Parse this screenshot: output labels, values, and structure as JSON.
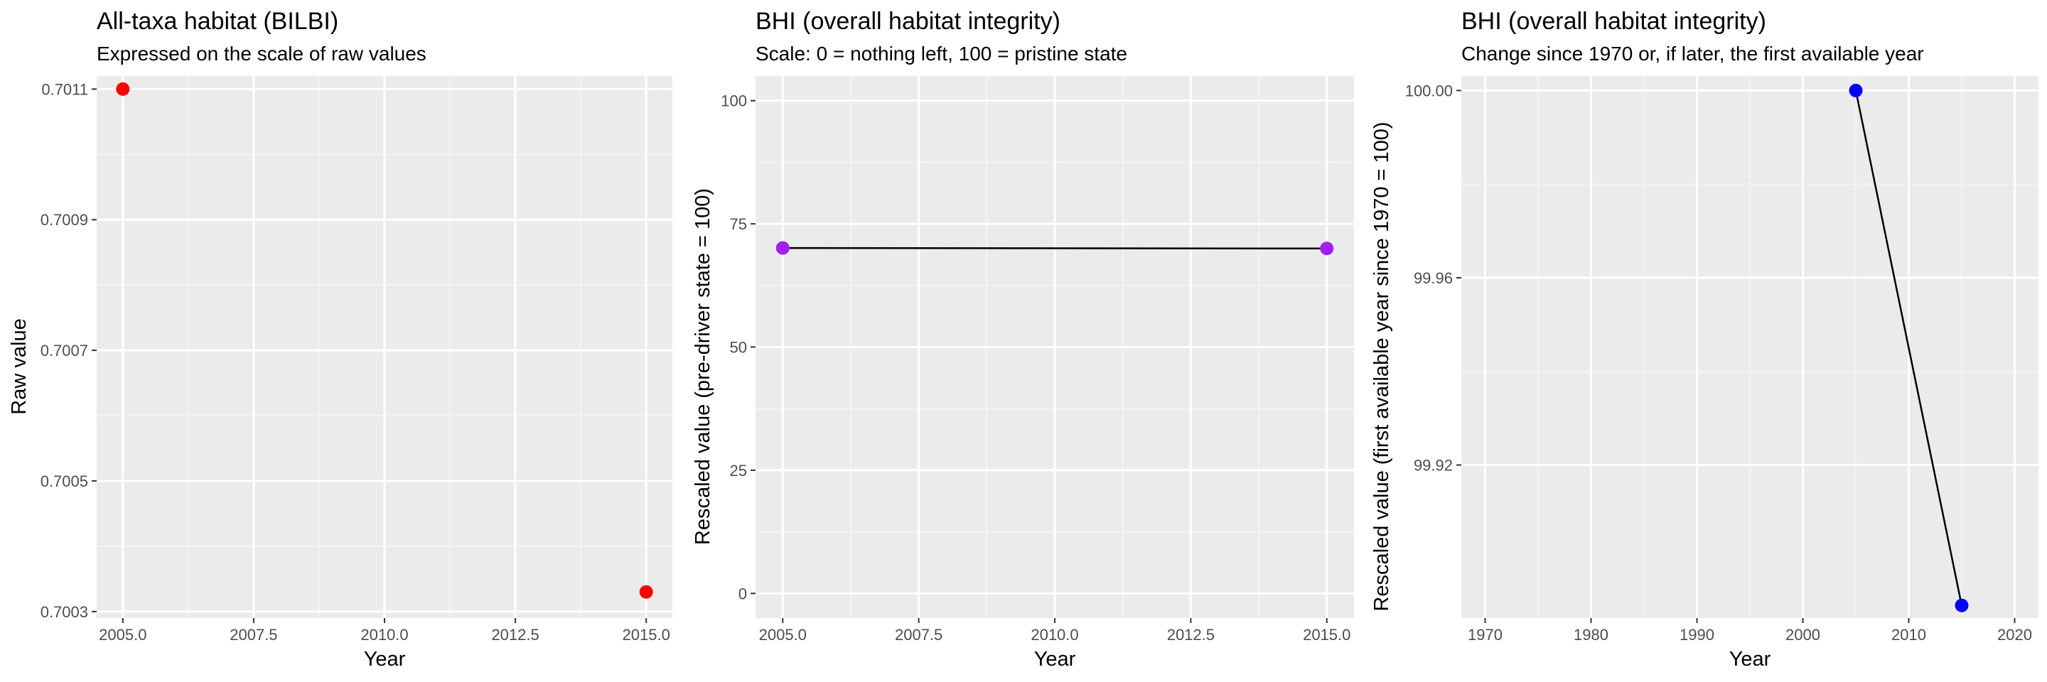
{
  "colors": {
    "panel_bg": "#ebebeb",
    "grid_major": "#ffffff",
    "grid_minor": "#f5f5f5",
    "line": "#000000",
    "tick": "#333333"
  },
  "chart_data": [
    {
      "type": "scatter",
      "title": "All-taxa habitat (BILBI)",
      "subtitle": "Expressed on the scale of raw values",
      "xlabel": "Year",
      "ylabel": "Raw value",
      "xlim": [
        2004.5,
        2015.5
      ],
      "ylim": [
        0.70029,
        0.70112
      ],
      "xticks": [
        2005.0,
        2007.5,
        2010.0,
        2012.5,
        2015.0
      ],
      "xtick_labels": [
        "2005.0",
        "2007.5",
        "2010.0",
        "2012.5",
        "2015.0"
      ],
      "yticks": [
        0.7003,
        0.7005,
        0.7007,
        0.7009,
        0.7011
      ],
      "ytick_labels": [
        "0.7003",
        "0.7005",
        "0.7007",
        "0.7009",
        "0.7011"
      ],
      "connect_points": false,
      "grid": true,
      "series": [
        {
          "color": "#ff0000",
          "x": [
            2005,
            2015
          ],
          "y": [
            0.7011,
            0.70033
          ]
        }
      ]
    },
    {
      "type": "line",
      "title": "BHI (overall habitat integrity)",
      "subtitle": "Scale: 0 = nothing left, 100 = pristine state",
      "xlabel": "Year",
      "ylabel": "Rescaled value (pre-driver state = 100)",
      "xlim": [
        2004.5,
        2015.5
      ],
      "ylim": [
        -5,
        105
      ],
      "xticks": [
        2005.0,
        2007.5,
        2010.0,
        2012.5,
        2015.0
      ],
      "xtick_labels": [
        "2005.0",
        "2007.5",
        "2010.0",
        "2012.5",
        "2015.0"
      ],
      "yticks": [
        0,
        25,
        50,
        75,
        100
      ],
      "ytick_labels": [
        "0",
        "25",
        "50",
        "75",
        "100"
      ],
      "connect_points": true,
      "grid": true,
      "series": [
        {
          "color": "#a020f0",
          "x": [
            2005,
            2015
          ],
          "y": [
            70.1,
            70.0
          ]
        }
      ]
    },
    {
      "type": "line",
      "title": "BHI (overall habitat integrity)",
      "subtitle": "Change since 1970 or, if later, the first available year",
      "xlabel": "Year",
      "ylabel": "Rescaled value (first available year since 1970 = 100)",
      "xlim": [
        1967.75,
        2022.25
      ],
      "ylim": [
        99.8873,
        100.0031
      ],
      "xticks": [
        1970,
        1980,
        1990,
        2000,
        2010,
        2020
      ],
      "xtick_labels": [
        "1970",
        "1980",
        "1990",
        "2000",
        "2010",
        "2020"
      ],
      "yticks": [
        99.92,
        99.96,
        100.0
      ],
      "ytick_labels": [
        "99.92",
        "99.96",
        "100.00"
      ],
      "connect_points": true,
      "grid": true,
      "series": [
        {
          "color": "#0000ff",
          "x": [
            2005,
            2015
          ],
          "y": [
            100.0,
            99.89
          ]
        }
      ]
    }
  ]
}
